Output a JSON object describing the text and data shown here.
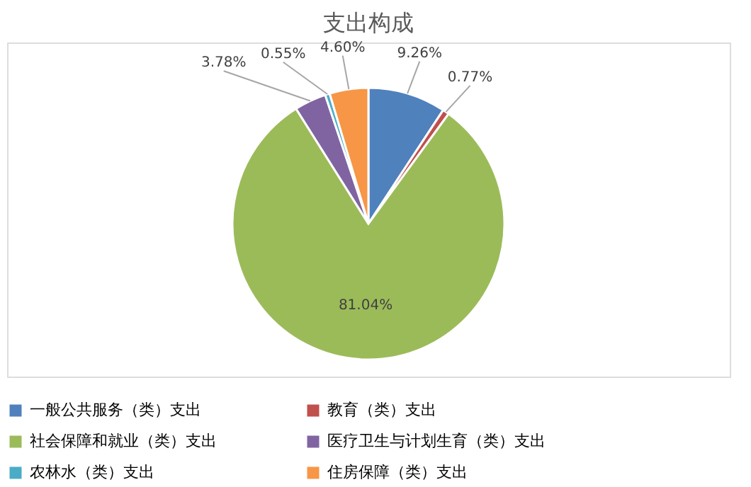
{
  "chart_data": {
    "type": "pie",
    "title": "支出构成",
    "categories": [
      "一般公共服务（类）支出",
      "教育（类）支出",
      "社会保障和就业（类）支出",
      "医疗卫生与计划生育（类）支出",
      "农林水（类）支出",
      "住房保障（类）支出"
    ],
    "values": [
      9.26,
      0.77,
      81.04,
      3.78,
      0.55,
      4.6
    ],
    "value_labels": [
      "9.26%",
      "0.77%",
      "81.04%",
      "3.78%",
      "0.55%",
      "4.60%"
    ],
    "colors": [
      "#4f81bd",
      "#c0504d",
      "#9bbb59",
      "#8064a2",
      "#4bacc6",
      "#f79646"
    ],
    "legend": "bottom"
  }
}
